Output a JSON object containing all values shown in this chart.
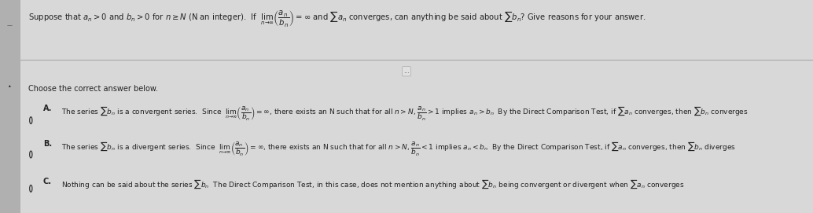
{
  "bg_color": "#d8d8d8",
  "main_bg_color": "#e8e8e8",
  "left_panel_color": "#b0b0b0",
  "text_color": "#222222",
  "header_text_1": "Suppose that $a_n > 0$ and $b_n > 0$ for $n \\geq N$ (N an integer).  If  $\\lim_{n \\to \\infty} \\left(\\dfrac{a_n}{b_n}\\right) = \\infty$ and $\\sum a_n$ converges, can anything be said about $\\sum b_n$? Give reasons for your answer.",
  "choose_text": "Choose the correct answer below.",
  "option_A_label": "A.",
  "option_A_line1": "The series $\\sum b_n$ is a convergent series.  Since  $\\lim_{n \\to \\infty} \\left(\\dfrac{a_n}{b_n}\\right) = \\infty$, there exists an N such that for all $n > N$, $\\dfrac{a_n}{b_n} > 1$ implies $a_n > b_n$  By the Direct Comparison Test, if $\\sum a_n$ converges, then $\\sum b_n$ converges",
  "option_B_label": "B.",
  "option_B_line1": "The series $\\sum b_n$ is a divergent series.  Since  $\\lim_{n \\to \\infty} \\left(\\dfrac{a_n}{b_n}\\right) = \\infty$, there exists an N such that for all $n > N$, $\\dfrac{a_n}{b_n} < 1$ implies $a_n < b_n$  By the Direct Comparison Test, if $\\sum a_n$ converges, then $\\sum b_n$ diverges",
  "option_C_label": "C.",
  "option_C_line1": "Nothing can be said about the series $\\sum b_n$  The Direct Comparison Test, in this case, does not mention anything about $\\sum b_n$ being convergent or divergent when $\\sum a_n$ converges",
  "radio_color": "#333333",
  "separator_color": "#aaaaaa",
  "dots_box_bg": "#e0e0e0",
  "dots_box_border": "#aaaaaa"
}
